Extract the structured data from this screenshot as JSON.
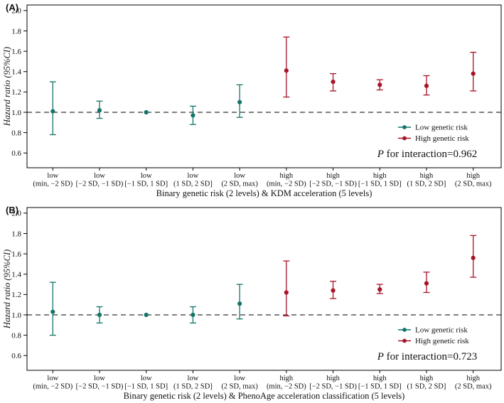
{
  "figure": {
    "background": "#ffffff",
    "axis_color": "#000000",
    "reference_line_style": "dashed"
  },
  "chart_data": [
    {
      "type": "errorbar",
      "panel_label": "(A)",
      "ylabel": "Hazard ratio (95%CI)",
      "xlabel": "Binary genetic risk (2 levels) & KDM acceleration (5 levels)",
      "ylim": [
        0.455,
        2.055
      ],
      "yticks": [
        "2.0",
        "1.8",
        "1.6",
        "1.4",
        "1.2",
        "1.0",
        "0.8",
        "0.6"
      ],
      "reference_line": 1.0,
      "grid": false,
      "legend_position": "lower right",
      "categories": [
        {
          "group": "low",
          "range": "(min, −2 SD)"
        },
        {
          "group": "low",
          "range": "[−2 SD, −1 SD)"
        },
        {
          "group": "low",
          "range": "[−1 SD, 1 SD]"
        },
        {
          "group": "low",
          "range": "(1 SD, 2 SD]"
        },
        {
          "group": "low",
          "range": "(2 SD, max)"
        },
        {
          "group": "high",
          "range": "(min, −2 SD)"
        },
        {
          "group": "high",
          "range": "[−2 SD, −1 SD)"
        },
        {
          "group": "high",
          "range": "[−1 SD, 1 SD]"
        },
        {
          "group": "high",
          "range": "(1 SD, 2 SD]"
        },
        {
          "group": "high",
          "range": "(2 SD, max)"
        }
      ],
      "series": [
        {
          "name": "Low genetic risk",
          "color": "#14756a",
          "points": [
            {
              "cat": 0,
              "est": 1.01,
              "lo": 0.78,
              "hi": 1.3
            },
            {
              "cat": 1,
              "est": 1.02,
              "lo": 0.94,
              "hi": 1.11
            },
            {
              "cat": 2,
              "est": 1.0,
              "lo": null,
              "hi": null
            },
            {
              "cat": 3,
              "est": 0.97,
              "lo": 0.88,
              "hi": 1.06
            },
            {
              "cat": 4,
              "est": 1.1,
              "lo": 0.95,
              "hi": 1.27
            }
          ]
        },
        {
          "name": "High genetic risk",
          "color": "#a81328",
          "points": [
            {
              "cat": 5,
              "est": 1.41,
              "lo": 1.15,
              "hi": 1.74
            },
            {
              "cat": 6,
              "est": 1.3,
              "lo": 1.21,
              "hi": 1.38
            },
            {
              "cat": 7,
              "est": 1.27,
              "lo": 1.22,
              "hi": 1.32
            },
            {
              "cat": 8,
              "est": 1.26,
              "lo": 1.17,
              "hi": 1.36
            },
            {
              "cat": 9,
              "est": 1.38,
              "lo": 1.21,
              "hi": 1.59
            }
          ]
        }
      ],
      "p_label": {
        "italic": "P",
        "rest": " for interaction=0.962"
      }
    },
    {
      "type": "errorbar",
      "panel_label": "(B)",
      "ylabel": "Hazard ratio (95%CI)",
      "xlabel": "Binary genetic risk (2 levels) & PhenoAge acceleration classification (5 levels)",
      "ylim": [
        0.455,
        2.055
      ],
      "yticks": [
        "2.0",
        "1.8",
        "1.6",
        "1.4",
        "1.2",
        "1.0",
        "0.8",
        "0.6"
      ],
      "reference_line": 1.0,
      "grid": false,
      "legend_position": "lower right",
      "categories": [
        {
          "group": "low",
          "range": "(min, −2 SD)"
        },
        {
          "group": "low",
          "range": "[−2 SD, −1 SD)"
        },
        {
          "group": "low",
          "range": "[−1 SD, 1 SD]"
        },
        {
          "group": "low",
          "range": "(1 SD, 2 SD]"
        },
        {
          "group": "low",
          "range": "(2 SD, max)"
        },
        {
          "group": "high",
          "range": "(min, −2 SD)"
        },
        {
          "group": "high",
          "range": "[−2 SD, −1 SD)"
        },
        {
          "group": "high",
          "range": "[−1 SD, 1 SD]"
        },
        {
          "group": "high",
          "range": "(1 SD, 2 SD]"
        },
        {
          "group": "high",
          "range": "(2 SD, max)"
        }
      ],
      "series": [
        {
          "name": "Low genetic risk",
          "color": "#14756a",
          "points": [
            {
              "cat": 0,
              "est": 1.03,
              "lo": 0.8,
              "hi": 1.32
            },
            {
              "cat": 1,
              "est": 1.0,
              "lo": 0.92,
              "hi": 1.08
            },
            {
              "cat": 2,
              "est": 1.0,
              "lo": null,
              "hi": null
            },
            {
              "cat": 3,
              "est": 1.0,
              "lo": 0.92,
              "hi": 1.08
            },
            {
              "cat": 4,
              "est": 1.11,
              "lo": 0.96,
              "hi": 1.3
            }
          ]
        },
        {
          "name": "High genetic risk",
          "color": "#a81328",
          "points": [
            {
              "cat": 5,
              "est": 1.22,
              "lo": 0.99,
              "hi": 1.53
            },
            {
              "cat": 6,
              "est": 1.24,
              "lo": 1.16,
              "hi": 1.33
            },
            {
              "cat": 7,
              "est": 1.25,
              "lo": 1.21,
              "hi": 1.3
            },
            {
              "cat": 8,
              "est": 1.31,
              "lo": 1.22,
              "hi": 1.42
            },
            {
              "cat": 9,
              "est": 1.56,
              "lo": 1.37,
              "hi": 1.78
            }
          ]
        }
      ],
      "p_label": {
        "italic": "P",
        "rest": " for interaction=0.723"
      }
    }
  ]
}
